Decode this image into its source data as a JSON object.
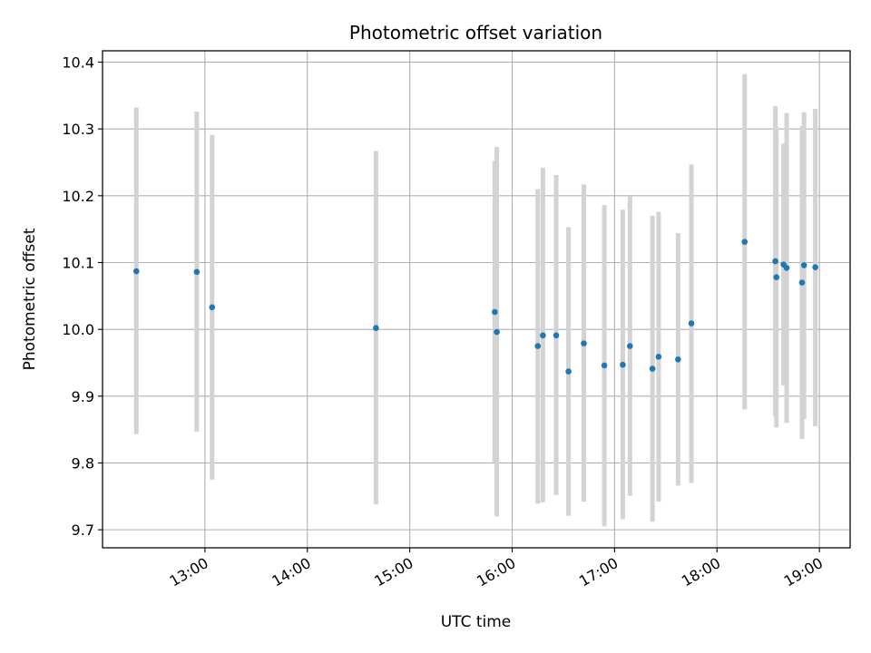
{
  "chart_data": {
    "type": "scatter",
    "title": "Photometric offset variation",
    "xlabel": "UTC time",
    "ylabel": "Photometric offset",
    "x_unit": "hours UTC",
    "xlim": [
      12.0,
      19.3
    ],
    "ylim": [
      9.673,
      10.417
    ],
    "grid": true,
    "point_color": "#1f77b4",
    "errorbar_color": "#d3d3d3",
    "xticks": [
      {
        "value": 13,
        "label": "13:00"
      },
      {
        "value": 14,
        "label": "14:00"
      },
      {
        "value": 15,
        "label": "15:00"
      },
      {
        "value": 16,
        "label": "16:00"
      },
      {
        "value": 17,
        "label": "17:00"
      },
      {
        "value": 18,
        "label": "18:00"
      },
      {
        "value": 19,
        "label": "19:00"
      }
    ],
    "yticks": [
      {
        "value": 9.7,
        "label": "9.7"
      },
      {
        "value": 9.8,
        "label": "9.8"
      },
      {
        "value": 9.9,
        "label": "9.9"
      },
      {
        "value": 10.0,
        "label": "10.0"
      },
      {
        "value": 10.1,
        "label": "10.1"
      },
      {
        "value": 10.2,
        "label": "10.2"
      },
      {
        "value": 10.3,
        "label": "10.3"
      },
      {
        "value": 10.4,
        "label": "10.4"
      }
    ],
    "points": [
      {
        "x": 12.33,
        "y": 10.087,
        "ylow": 9.843,
        "yhigh": 10.332
      },
      {
        "x": 12.92,
        "y": 10.086,
        "ylow": 9.847,
        "yhigh": 10.326
      },
      {
        "x": 13.07,
        "y": 10.033,
        "ylow": 9.775,
        "yhigh": 10.291
      },
      {
        "x": 14.67,
        "y": 10.002,
        "ylow": 9.738,
        "yhigh": 10.267
      },
      {
        "x": 15.83,
        "y": 10.026,
        "ylow": 9.801,
        "yhigh": 10.252
      },
      {
        "x": 15.85,
        "y": 9.996,
        "ylow": 9.72,
        "yhigh": 10.273
      },
      {
        "x": 16.25,
        "y": 9.975,
        "ylow": 9.739,
        "yhigh": 10.21
      },
      {
        "x": 16.3,
        "y": 9.991,
        "ylow": 9.741,
        "yhigh": 10.242
      },
      {
        "x": 16.43,
        "y": 9.991,
        "ylow": 9.752,
        "yhigh": 10.231
      },
      {
        "x": 16.55,
        "y": 9.937,
        "ylow": 9.721,
        "yhigh": 10.153
      },
      {
        "x": 16.7,
        "y": 9.979,
        "ylow": 9.742,
        "yhigh": 10.217
      },
      {
        "x": 16.9,
        "y": 9.946,
        "ylow": 9.705,
        "yhigh": 10.186
      },
      {
        "x": 17.08,
        "y": 9.947,
        "ylow": 9.716,
        "yhigh": 10.179
      },
      {
        "x": 17.15,
        "y": 9.975,
        "ylow": 9.751,
        "yhigh": 10.2
      },
      {
        "x": 17.37,
        "y": 9.941,
        "ylow": 9.712,
        "yhigh": 10.17
      },
      {
        "x": 17.43,
        "y": 9.959,
        "ylow": 9.742,
        "yhigh": 10.176
      },
      {
        "x": 17.62,
        "y": 9.955,
        "ylow": 9.766,
        "yhigh": 10.144
      },
      {
        "x": 17.75,
        "y": 10.009,
        "ylow": 9.77,
        "yhigh": 10.247
      },
      {
        "x": 18.27,
        "y": 10.131,
        "ylow": 9.88,
        "yhigh": 10.382
      },
      {
        "x": 18.57,
        "y": 10.102,
        "ylow": 9.87,
        "yhigh": 10.334
      },
      {
        "x": 18.58,
        "y": 10.078,
        "ylow": 9.853,
        "yhigh": 10.303
      },
      {
        "x": 18.65,
        "y": 10.097,
        "ylow": 9.916,
        "yhigh": 10.278
      },
      {
        "x": 18.68,
        "y": 10.092,
        "ylow": 9.86,
        "yhigh": 10.324
      },
      {
        "x": 18.83,
        "y": 10.07,
        "ylow": 9.836,
        "yhigh": 10.304
      },
      {
        "x": 18.85,
        "y": 10.096,
        "ylow": 9.866,
        "yhigh": 10.325
      },
      {
        "x": 18.96,
        "y": 10.093,
        "ylow": 9.855,
        "yhigh": 10.33
      }
    ]
  }
}
